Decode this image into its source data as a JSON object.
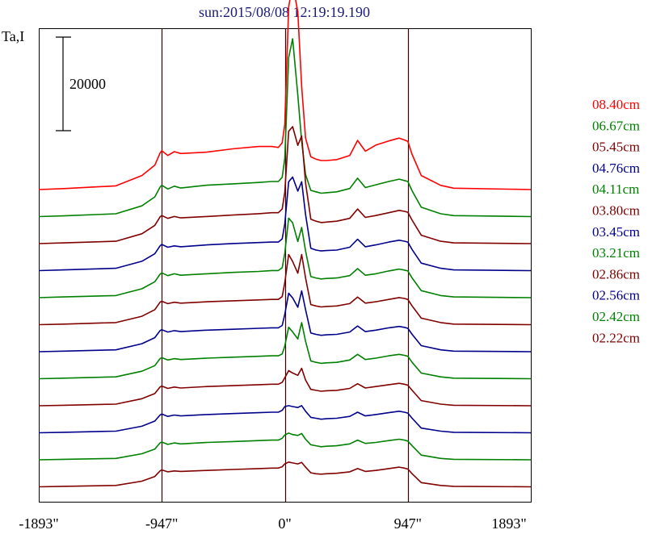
{
  "chart_data": {
    "type": "line",
    "title": "sun:2015/08/08 12:19:19.190",
    "ylabel": "Ta,I",
    "xlabel": "",
    "scale_bar_label": "20000",
    "scale_bar_value": 20000,
    "x_ticks": [
      {
        "value": -1893,
        "label": "-1893\""
      },
      {
        "value": -947,
        "label": "-947\""
      },
      {
        "value": 0,
        "label": "0\""
      },
      {
        "value": 947,
        "label": "947\""
      },
      {
        "value": 1893,
        "label": "1893\""
      }
    ],
    "xlim": [
      -1893,
      1893
    ],
    "vertical_lines": [
      -947,
      0,
      947
    ],
    "profile_x": [
      -1893,
      -1700,
      -1300,
      -1100,
      -1000,
      -960,
      -947,
      -900,
      -850,
      -800,
      -600,
      -400,
      -200,
      -100,
      -50,
      -20,
      0,
      30,
      60,
      100,
      130,
      160,
      200,
      240,
      280,
      320,
      400,
      500,
      560,
      620,
      700,
      800,
      880,
      920,
      947,
      980,
      1050,
      1200,
      1300,
      1893
    ],
    "series": [
      {
        "name": "08.40cm",
        "color": "#ff0000",
        "values": [
          0,
          200,
          800,
          3000,
          5200,
          7800,
          8300,
          7300,
          8100,
          7700,
          8000,
          8700,
          9200,
          9200,
          9000,
          10000,
          14000,
          39000,
          44000,
          38000,
          22000,
          11000,
          7000,
          6500,
          6200,
          6200,
          6400,
          7300,
          10500,
          8200,
          9500,
          10400,
          11000,
          10600,
          10300,
          7500,
          3000,
          900,
          300,
          0
        ]
      },
      {
        "name": "06.67cm",
        "color": "#008000",
        "values": [
          0,
          150,
          600,
          2300,
          4200,
          6300,
          6700,
          5900,
          6500,
          6100,
          6700,
          7000,
          7300,
          7500,
          7500,
          8400,
          12500,
          34000,
          38000,
          26000,
          16000,
          9000,
          5600,
          5300,
          5000,
          5100,
          5300,
          6000,
          8200,
          6200,
          6800,
          7500,
          8000,
          7700,
          7500,
          5500,
          2000,
          600,
          200,
          0
        ]
      },
      {
        "name": "05.45cm",
        "color": "#800000",
        "values": [
          0,
          150,
          500,
          2100,
          3900,
          5700,
          6000,
          5400,
          5800,
          5500,
          5800,
          6100,
          6400,
          6600,
          6600,
          7400,
          11000,
          24000,
          25000,
          21000,
          23000,
          13000,
          5200,
          4800,
          4500,
          4600,
          4800,
          5400,
          7400,
          5600,
          6000,
          6600,
          7100,
          6900,
          6700,
          5000,
          1800,
          500,
          150,
          0
        ]
      },
      {
        "name": "04.76cm",
        "color": "#00008b",
        "values": [
          0,
          150,
          500,
          2000,
          3600,
          5300,
          5600,
          5000,
          5300,
          5100,
          5500,
          5800,
          6000,
          6100,
          6100,
          6800,
          10000,
          19000,
          20000,
          17000,
          19000,
          12000,
          4800,
          4400,
          4200,
          4300,
          4400,
          5000,
          6700,
          5100,
          5500,
          6100,
          6500,
          6300,
          6100,
          4500,
          1600,
          500,
          150,
          0
        ]
      },
      {
        "name": "04.11cm",
        "color": "#008000",
        "values": [
          0,
          150,
          450,
          1900,
          3400,
          5000,
          5300,
          4700,
          5100,
          4800,
          5100,
          5400,
          5600,
          5800,
          5800,
          6400,
          9500,
          17000,
          16000,
          12000,
          15000,
          10000,
          4500,
          4200,
          4000,
          4100,
          4200,
          4700,
          6200,
          4800,
          5100,
          5700,
          6100,
          5900,
          5700,
          4200,
          1500,
          450,
          150,
          0
        ]
      },
      {
        "name": "03.80cm",
        "color": "#800000",
        "values": [
          0,
          120,
          450,
          1800,
          3200,
          4800,
          5000,
          4500,
          4800,
          4600,
          4900,
          5100,
          5300,
          5400,
          5400,
          6000,
          9000,
          15000,
          13500,
          11000,
          15000,
          10000,
          4300,
          4000,
          3800,
          3900,
          4000,
          4500,
          5900,
          4600,
          4900,
          5400,
          5800,
          5600,
          5400,
          4000,
          1400,
          450,
          120,
          0
        ]
      },
      {
        "name": "03.45cm",
        "color": "#00008b",
        "values": [
          0,
          120,
          400,
          1700,
          3000,
          4500,
          4700,
          4200,
          4500,
          4300,
          4600,
          4800,
          5000,
          5100,
          5100,
          5600,
          8000,
          12500,
          11500,
          9500,
          13000,
          9000,
          4000,
          3700,
          3500,
          3600,
          3700,
          4200,
          5500,
          4300,
          4600,
          5100,
          5400,
          5200,
          5000,
          3700,
          1300,
          400,
          120,
          0
        ]
      },
      {
        "name": "03.21cm",
        "color": "#008000",
        "values": [
          0,
          120,
          400,
          1600,
          2800,
          4300,
          4500,
          4000,
          4300,
          4100,
          4400,
          4600,
          4800,
          4900,
          4900,
          5300,
          7000,
          11000,
          10000,
          8500,
          12000,
          8000,
          3800,
          3500,
          3300,
          3400,
          3500,
          4000,
          5200,
          4100,
          4400,
          4900,
          5200,
          5000,
          4800,
          3500,
          1200,
          400,
          120,
          0
        ]
      },
      {
        "name": "02.86cm",
        "color": "#800000",
        "values": [
          0,
          100,
          350,
          1500,
          2600,
          4000,
          4200,
          3700,
          4000,
          3800,
          4100,
          4300,
          4500,
          4600,
          4600,
          5000,
          6000,
          7500,
          7000,
          6500,
          8000,
          5500,
          3500,
          3300,
          3100,
          3200,
          3300,
          3700,
          4700,
          3800,
          4100,
          4500,
          4800,
          4600,
          4400,
          3300,
          1100,
          350,
          100,
          0
        ]
      },
      {
        "name": "02.56cm",
        "color": "#00008b",
        "values": [
          0,
          100,
          350,
          1400,
          2500,
          3800,
          4000,
          3500,
          3800,
          3600,
          3900,
          4100,
          4300,
          4400,
          4400,
          4800,
          5600,
          5800,
          5600,
          5400,
          5800,
          4600,
          3300,
          3100,
          2900,
          3000,
          3100,
          3500,
          4400,
          3600,
          3900,
          4300,
          4600,
          4400,
          4200,
          3100,
          1000,
          350,
          100,
          0
        ]
      },
      {
        "name": "02.42cm",
        "color": "#008000",
        "values": [
          0,
          100,
          300,
          1300,
          2300,
          3600,
          3800,
          3300,
          3600,
          3400,
          3700,
          3900,
          4100,
          4200,
          4200,
          4600,
          5300,
          5700,
          5400,
          5200,
          5600,
          4400,
          3200,
          3000,
          2800,
          2900,
          3000,
          3400,
          4200,
          3500,
          3700,
          4100,
          4400,
          4200,
          4000,
          3000,
          1000,
          300,
          100,
          0
        ]
      },
      {
        "name": "02.22cm",
        "color": "#800000",
        "values": [
          0,
          100,
          300,
          1200,
          2200,
          3400,
          3600,
          3200,
          3400,
          3300,
          3500,
          3700,
          3900,
          4000,
          4000,
          4300,
          4900,
          5300,
          5100,
          4900,
          5200,
          4200,
          3000,
          2800,
          2700,
          2800,
          2900,
          3200,
          3900,
          3300,
          3500,
          3900,
          4200,
          4000,
          3800,
          2800,
          900,
          300,
          100,
          0
        ]
      }
    ]
  }
}
